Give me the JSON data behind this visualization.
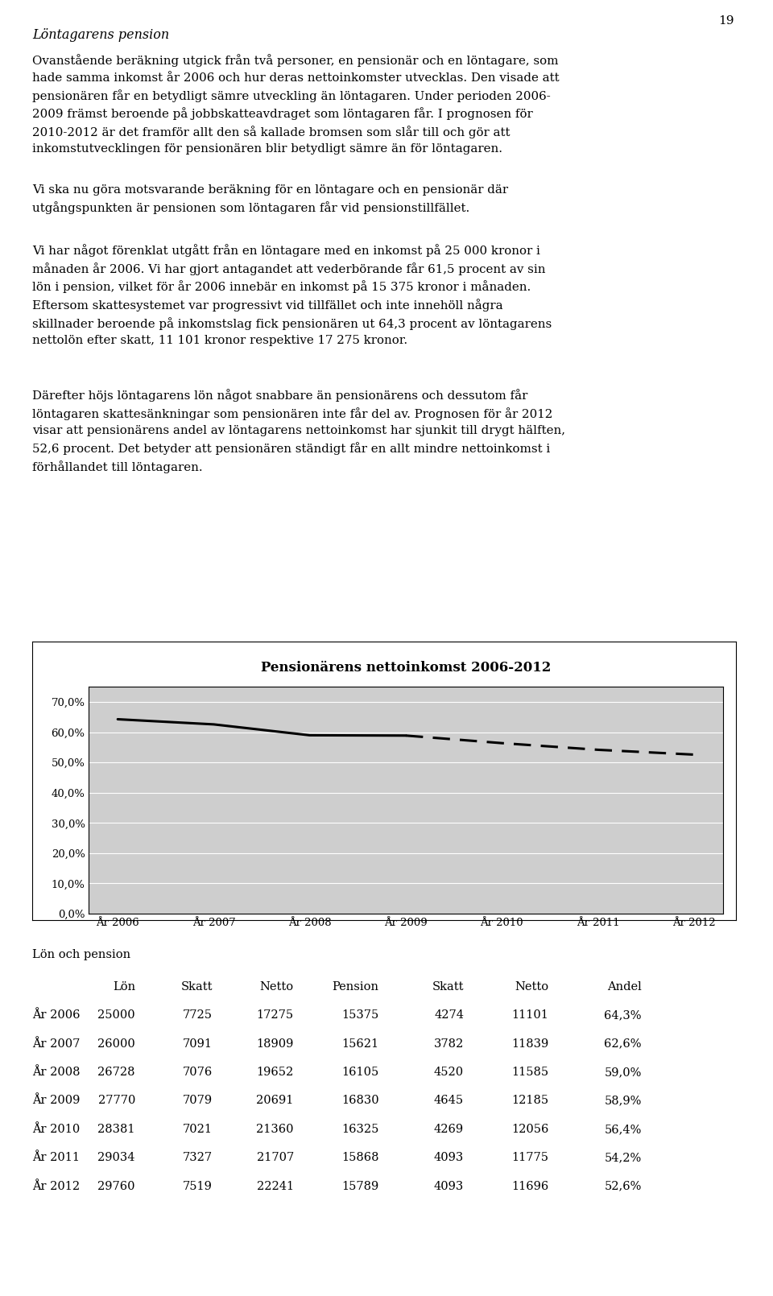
{
  "page_number": "19",
  "heading": "Löntagarens pension",
  "chart_title": "Pensionärens nettoinkomst 2006-2012",
  "years": [
    "År 2006",
    "År 2007",
    "År 2008",
    "År 2009",
    "År 2010",
    "År 2011",
    "År 2012"
  ],
  "andel_values": [
    0.643,
    0.626,
    0.59,
    0.589,
    0.564,
    0.542,
    0.526
  ],
  "y_ticks": [
    0.0,
    0.1,
    0.2,
    0.3,
    0.4,
    0.5,
    0.6,
    0.7
  ],
  "y_tick_labels": [
    "0,0%",
    "10,0%",
    "20,0%",
    "30,0%",
    "40,0%",
    "50,0%",
    "60,0%",
    "70,0%"
  ],
  "ylim": [
    0.0,
    0.75
  ],
  "plot_bg_color": "#cecece",
  "outer_bg_color": "#ffffff",
  "line_color": "#000000",
  "table_title": "Lön och pension",
  "table_headers": [
    "",
    "Lön",
    "Skatt",
    "Netto",
    "Pension",
    "Skatt",
    "Netto",
    "Andel"
  ],
  "table_rows": [
    [
      "År 2006",
      "25000",
      "7725",
      "17275",
      "15375",
      "4274",
      "11101",
      "64,3%"
    ],
    [
      "År 2007",
      "26000",
      "7091",
      "18909",
      "15621",
      "3782",
      "11839",
      "62,6%"
    ],
    [
      "År 2008",
      "26728",
      "7076",
      "19652",
      "16105",
      "4520",
      "11585",
      "59,0%"
    ],
    [
      "År 2009",
      "27770",
      "7079",
      "20691",
      "16830",
      "4645",
      "12185",
      "58,9%"
    ],
    [
      "År 2010",
      "28381",
      "7021",
      "21360",
      "16325",
      "4269",
      "12056",
      "56,4%"
    ],
    [
      "År 2011",
      "29034",
      "7327",
      "21707",
      "15868",
      "4093",
      "11775",
      "54,2%"
    ],
    [
      "År 2012",
      "29760",
      "7519",
      "22241",
      "15789",
      "4093",
      "11696",
      "52,6%"
    ]
  ],
  "para1": "Ovanstående beräkning utgick från två personer, en pensionär och en löntagare, som\nhade samma inkomst år 2006 och hur deras nettoinkomster utvecklas. Den visade att\npensionären får en betydligt sämre utveckling än löntagaren. Under perioden 2006-\n2009 främst beroende på jobbskatteavdraget som löntagaren får. I prognosen för\n2010-2012 är det framför allt den så kallade bromsen som slår till och gör att\ninkomstutvecklingen för pensionären blir betydligt sämre än för löntagaren.",
  "para2": "Vi ska nu göra motsvarande beräkning för en löntagare och en pensionär där\nutgångspunkten är pensionen som löntagaren får vid pensionstillfället.",
  "para3": "Vi har något förenklat utgått från en löntagare med en inkomst på 25 000 kronor i\nmånaden år 2006. Vi har gjort antagandet att vederbörande får 61,5 procent av sin\nlön i pension, vilket för år 2006 innebär en inkomst på 15 375 kronor i månaden.\nEftersom skattesystemet var progressivt vid tillfället och inte innehöll några\nskillnader beroende på inkomstslag fick pensionären ut 64,3 procent av löntagarens\nnettolön efter skatt, 11 101 kronor respektive 17 275 kronor.",
  "para4": "Därefter höjs löntagarens lön något snabbare än pensionärens och dessutom får\nlöntagaren skattesänkningar som pensionären inte får del av. Prognosen för år 2012\nvisar att pensionärens andel av löntagarens nettoinkomst har sjunkit till drygt hälften,\n52,6 procent. Det betyder att pensionären ständigt får en allt mindre nettoinkomst i\nförhållandet till löntagaren."
}
